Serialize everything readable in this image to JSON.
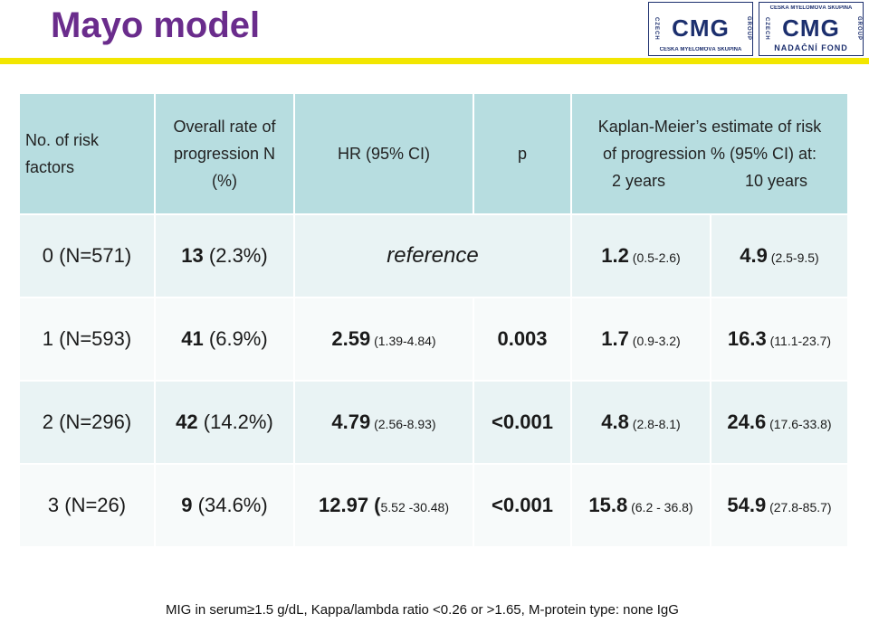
{
  "title": "Mayo model",
  "logos": [
    {
      "side_left": "CZECH",
      "side_right": "GROUP",
      "mark": "CMG",
      "cap_top": "",
      "cap_bottom": "ČESKÁ MYELOMOVÁ SKUPINA"
    },
    {
      "side_left": "CZECH",
      "side_right": "GROUP",
      "mark": "CMG",
      "cap_top": "ČESKÁ MYELOMOVÁ SKUPINA",
      "cap_bottom": "NADAČNÍ FOND"
    }
  ],
  "table": {
    "headers": {
      "risk": "No. of risk factors",
      "rate": "Overall rate of progression N (%)",
      "hr": "HR (95% CI)",
      "p": "p",
      "km_line1": "Kaplan-Meier’s  estimate of risk",
      "km_line2": "of progression % (95% CI) at:",
      "km_y2": "2 years",
      "km_y10": "10 years"
    },
    "rows": [
      {
        "risk": "0 (N=571)",
        "rate_n": "13",
        "rate_pct": " (2.3%)",
        "hr": "",
        "hr_ci": "",
        "hr_ref": "reference",
        "p": "",
        "y2": "1.2",
        "y2_ci": " (0.5-2.6)",
        "y10": "4.9",
        "y10_ci": " (2.5-9.5)"
      },
      {
        "risk": "1 (N=593)",
        "rate_n": "41",
        "rate_pct": " (6.9%)",
        "hr": "2.59",
        "hr_ci": "   (1.39-4.84)",
        "hr_ref": "",
        "p": "0.003",
        "y2": "1.7",
        "y2_ci": " (0.9-3.2)",
        "y10": "16.3",
        "y10_ci": " (11.1-23.7)"
      },
      {
        "risk": "2 (N=296)",
        "rate_n": "42",
        "rate_pct": " (14.2%)",
        "hr": "4.79",
        "hr_ci": "   (2.56-8.93)",
        "hr_ref": "",
        "p": "<0.001",
        "y2": "4.8",
        "y2_ci": " (2.8-8.1)",
        "y10": "24.6",
        "y10_ci": " (17.6-33.8)"
      },
      {
        "risk": "3 (N=26)",
        "rate_n": "9",
        "rate_pct": " (34.6%)",
        "hr": "12.97 (",
        "hr_ci": "5.52 -30.48)",
        "hr_ref": "",
        "p": "<0.001",
        "y2": "15.8",
        "y2_ci": " (6.2 - 36.8)",
        "y10": "54.9",
        "y10_ci": " (27.8-85.7)"
      }
    ]
  },
  "footer": "MIG in serum≥1.5 g/dL, Kappa/lambda ratio <0.26 or >1.65, M-protein type: none IgG"
}
